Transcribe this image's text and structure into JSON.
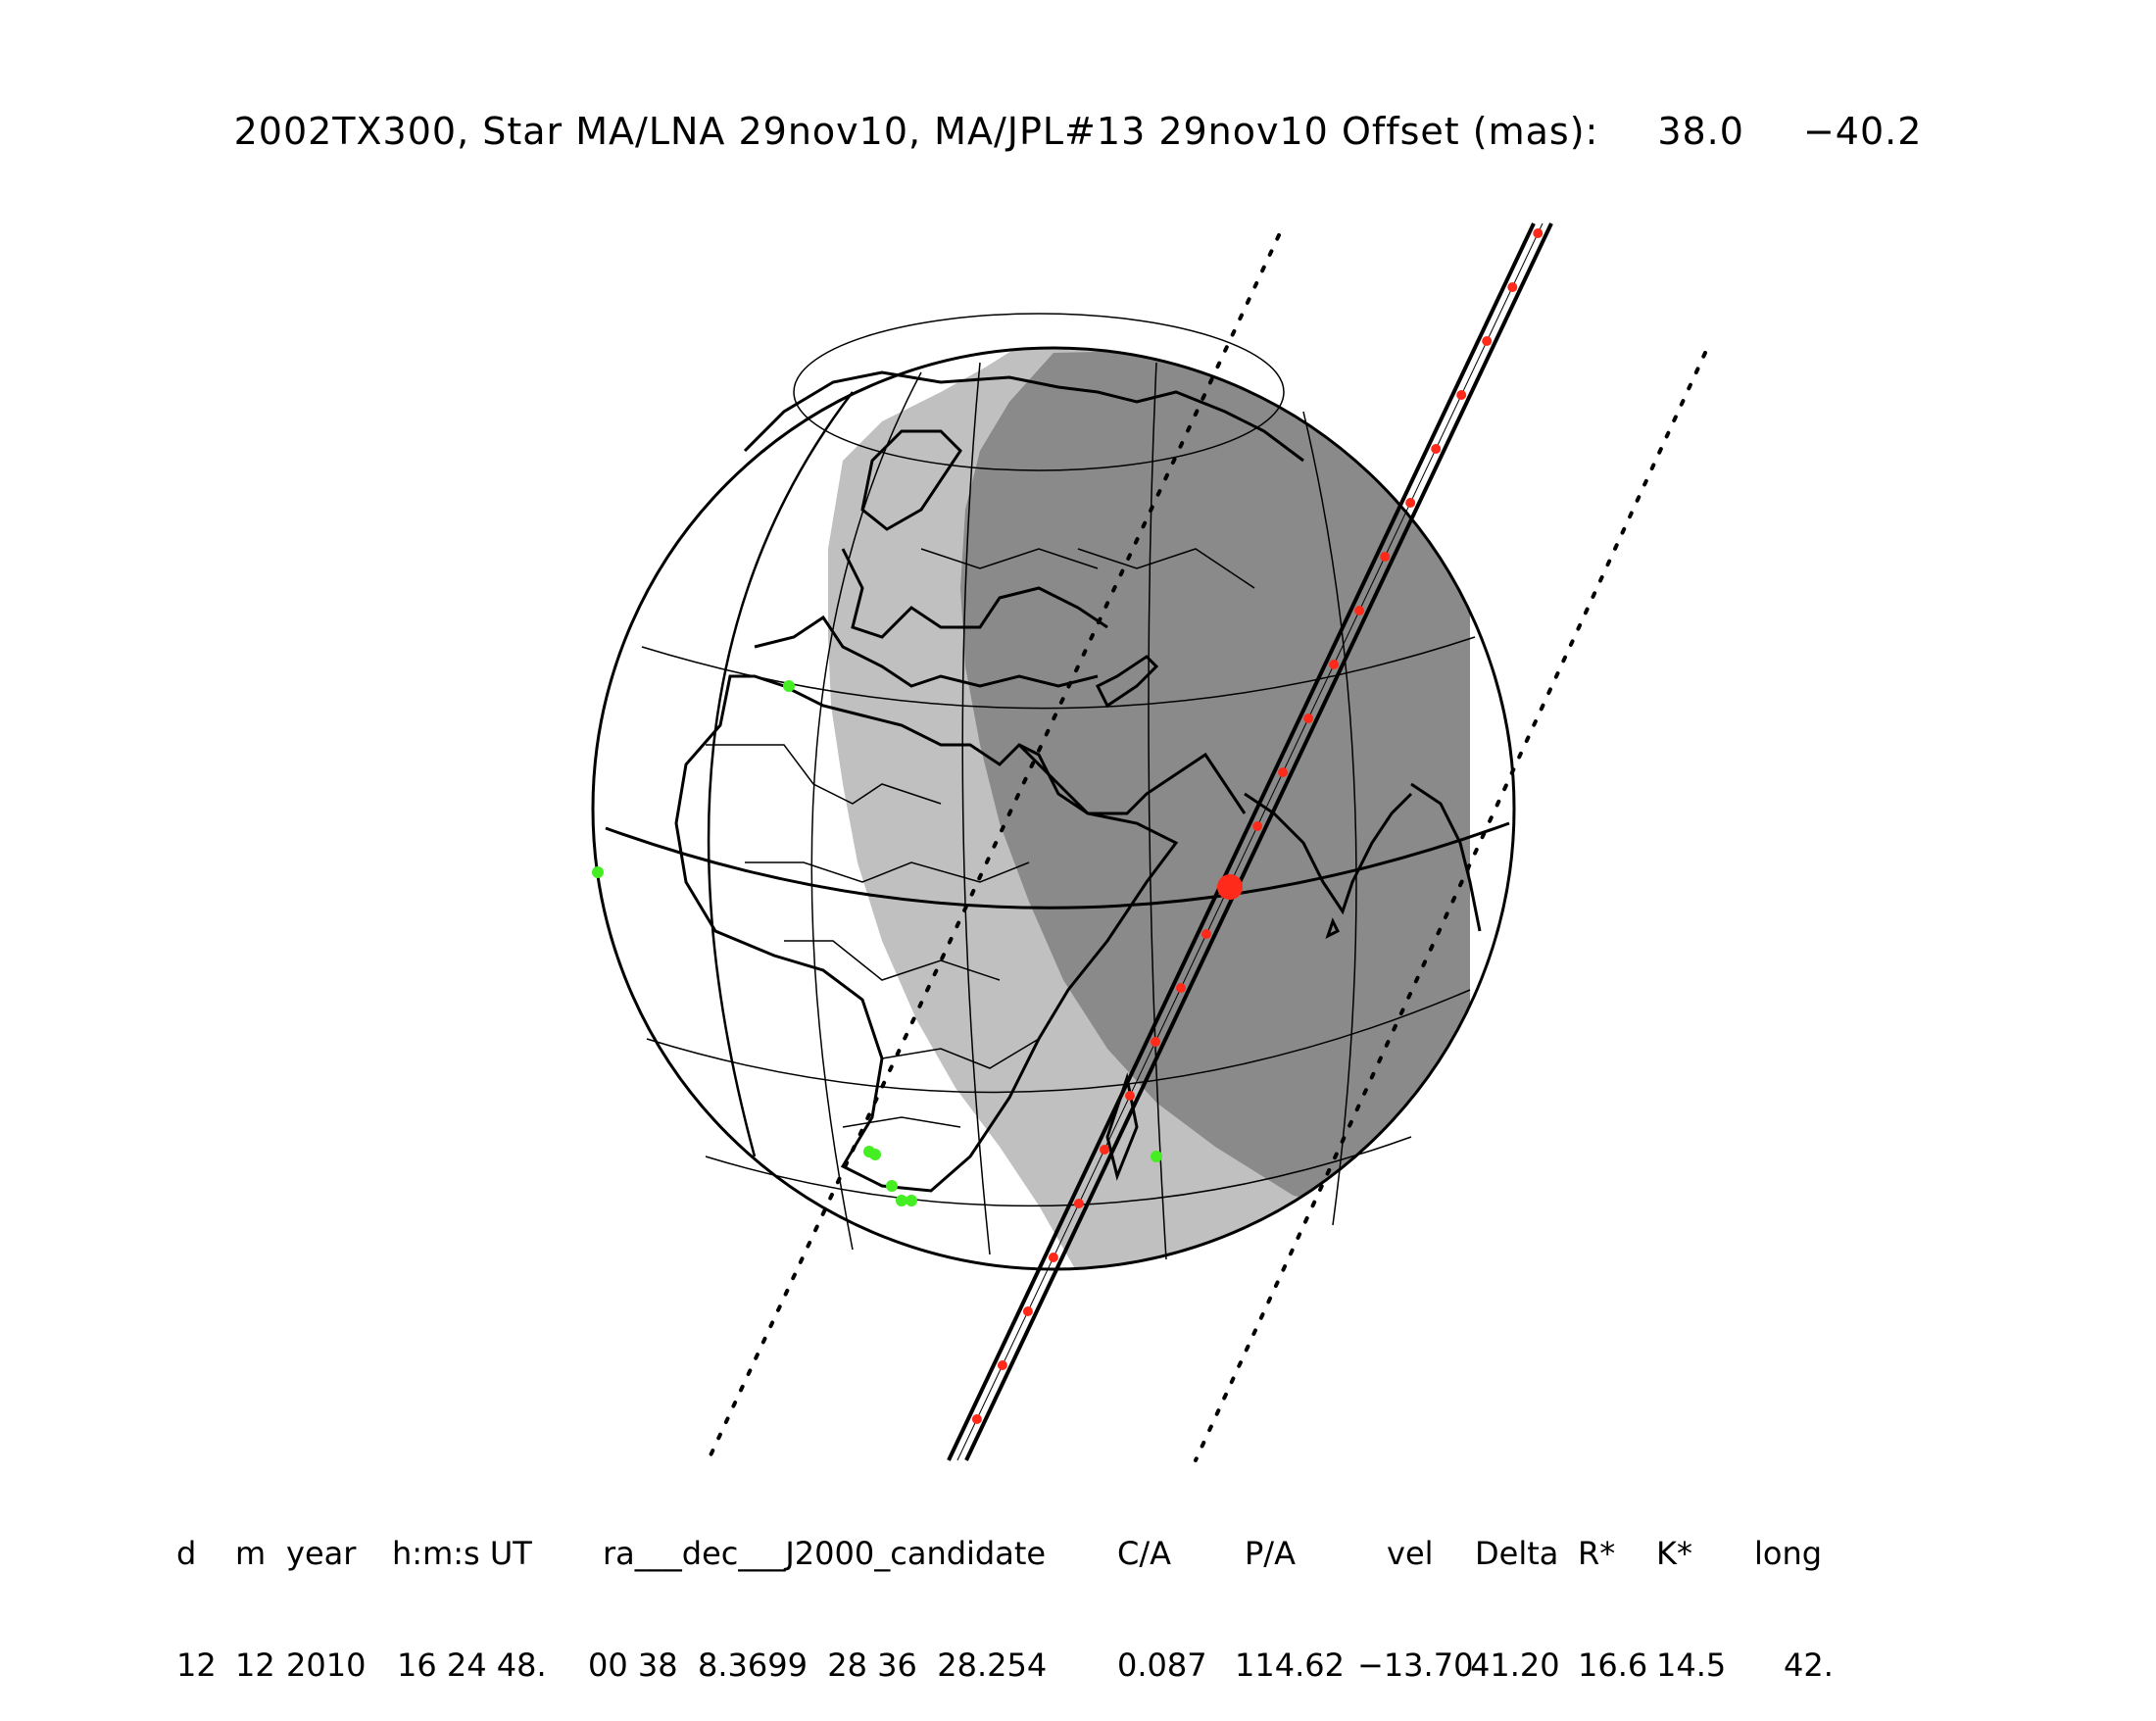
{
  "title": {
    "text": "2002TX300, Star MA/LNA 29nov10, MA/JPL#13 29nov10 Offset (mas):",
    "offset_ra": "38.0",
    "offset_dec": "−40.2"
  },
  "table": {
    "headers": [
      "d",
      "m",
      "year",
      "h:m:s UT",
      "ra___dec___J2000_candidate",
      "C/A",
      "P/A",
      "vel",
      "Delta",
      "R*",
      "K*",
      "long"
    ],
    "values": [
      "12",
      "12",
      "2010",
      "16 24 48.",
      "00 38  8.3699  28 36  28.254",
      "0.087",
      "114.62",
      "−13.70",
      "41.20",
      "16.6",
      "14.5",
      "42."
    ]
  },
  "map": {
    "colors": {
      "background": "#ffffff",
      "day": "#ffffff",
      "twilight": "#c0c0c0",
      "night": "#8a8a8a",
      "lines": "#000000",
      "path_dots": "#ff2a1a",
      "sites": "#44ee22"
    }
  }
}
